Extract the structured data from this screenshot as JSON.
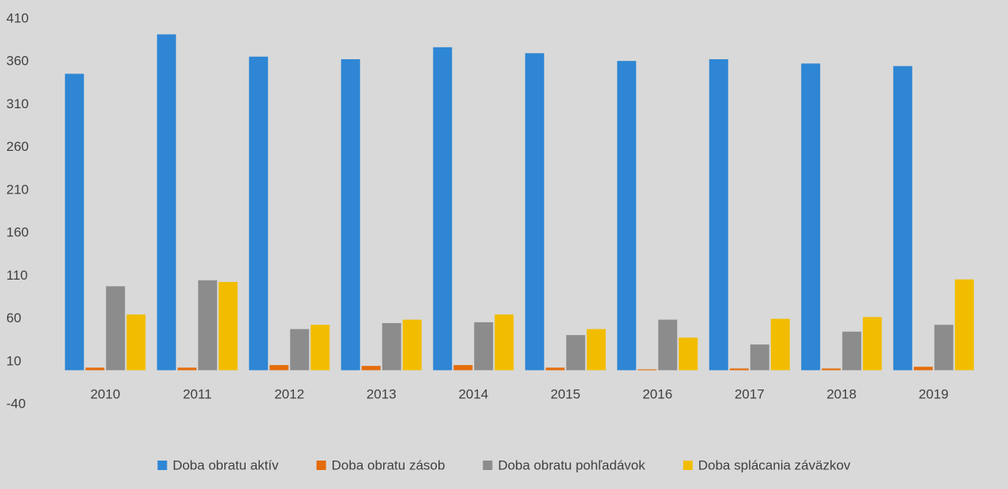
{
  "chart_data": {
    "type": "bar",
    "categories": [
      "2010",
      "2011",
      "2012",
      "2013",
      "2014",
      "2015",
      "2016",
      "2017",
      "2018",
      "2019"
    ],
    "series": [
      {
        "name": "Doba obratu aktív",
        "color": "#2e86d4",
        "values": [
          346,
          392,
          366,
          363,
          377,
          370,
          361,
          363,
          358,
          355
        ]
      },
      {
        "name": "Doba obratu zásob",
        "color": "#e46c0a",
        "values": [
          3,
          3,
          6,
          5,
          6,
          3,
          1,
          2,
          2,
          4
        ]
      },
      {
        "name": "Doba obratu pohľadávok",
        "color": "#8c8c8c",
        "values": [
          98,
          105,
          48,
          55,
          56,
          41,
          59,
          30,
          45,
          53
        ]
      },
      {
        "name": "Doba splácania záväzkov",
        "color": "#f2bd00",
        "values": [
          65,
          103,
          53,
          59,
          65,
          48,
          38,
          60,
          62,
          106
        ]
      }
    ],
    "ylim": [
      -40,
      410
    ],
    "yticks": [
      -40,
      10,
      60,
      110,
      160,
      210,
      260,
      310,
      360,
      410
    ],
    "grid": false,
    "legend": "bottom"
  }
}
